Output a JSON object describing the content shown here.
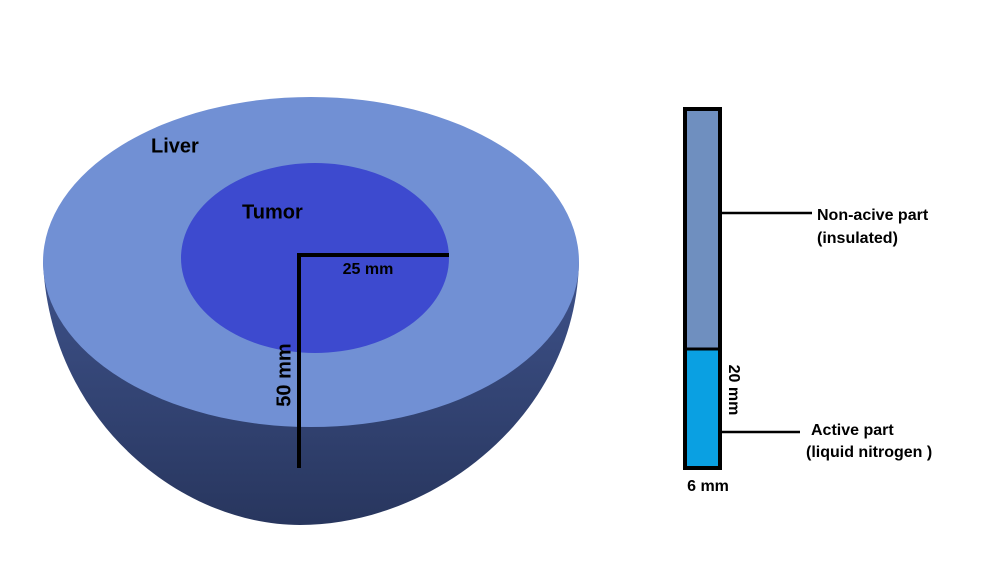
{
  "labels": {
    "liver": "Liver",
    "tumor": "Tumor"
  },
  "dimensions": {
    "tumor_radius": "25 mm",
    "liver_radius": "50 mm",
    "active_length": "20 mm",
    "probe_diameter": "6 mm"
  },
  "probe": {
    "non_active": [
      "Non-acive part",
      "(insulated)"
    ],
    "active": [
      "Active part",
      "(liquid nitrogen )"
    ]
  }
}
